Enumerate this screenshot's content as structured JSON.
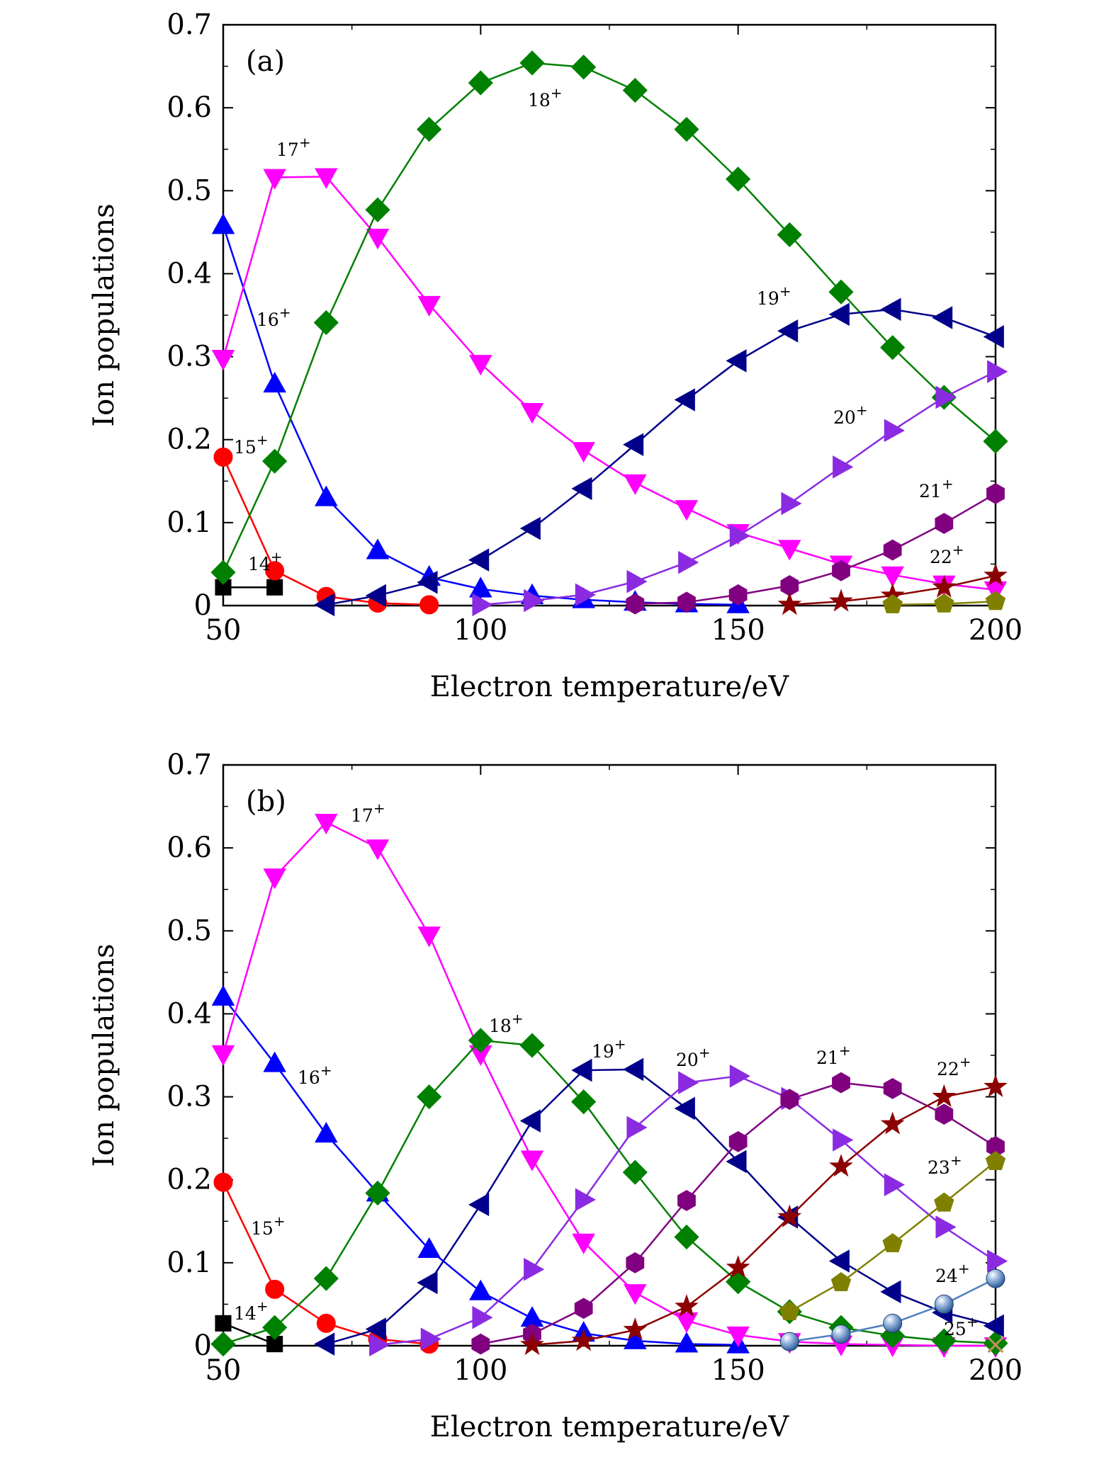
{
  "chart_data": [
    {
      "type": "line",
      "panel_label": "(a)",
      "xlabel": "Electron temperature/eV",
      "ylabel": "Ion populations",
      "xlim": [
        50,
        200
      ],
      "ylim": [
        0,
        0.7
      ],
      "xticks": [
        "50",
        "100",
        "150",
        "200"
      ],
      "yticks": [
        "0",
        "0.1",
        "0.2",
        "0.3",
        "0.4",
        "0.5",
        "0.6",
        "0.7"
      ],
      "series": [
        {
          "name": "14+",
          "color": "#000000",
          "marker": "square",
          "x": [
            50,
            60
          ],
          "y": [
            0.022,
            0.022
          ]
        },
        {
          "name": "15+",
          "color": "#ff0000",
          "marker": "circle",
          "x": [
            50,
            60,
            70,
            80,
            90
          ],
          "y": [
            0.179,
            0.042,
            0.011,
            0.003,
            0.001
          ]
        },
        {
          "name": "16+",
          "color": "#0000ff",
          "marker": "triangle-up",
          "x": [
            50,
            60,
            70,
            80,
            90,
            100,
            110,
            120,
            130,
            140,
            150
          ],
          "y": [
            0.458,
            0.267,
            0.13,
            0.066,
            0.034,
            0.02,
            0.012,
            0.007,
            0.004,
            0.002,
            0.001
          ]
        },
        {
          "name": "17+",
          "color": "#ff00ff",
          "marker": "triangle-down",
          "x": [
            50,
            60,
            70,
            80,
            90,
            100,
            110,
            120,
            130,
            140,
            150,
            160,
            170,
            180,
            190,
            200
          ],
          "y": [
            0.298,
            0.516,
            0.517,
            0.444,
            0.363,
            0.292,
            0.234,
            0.187,
            0.148,
            0.117,
            0.088,
            0.069,
            0.05,
            0.037,
            0.026,
            0.019
          ]
        },
        {
          "name": "18+",
          "color": "#008000",
          "marker": "diamond",
          "x": [
            50,
            60,
            70,
            80,
            90,
            100,
            110,
            120,
            130,
            140,
            150,
            160,
            170,
            180,
            190,
            200
          ],
          "y": [
            0.04,
            0.174,
            0.341,
            0.477,
            0.574,
            0.63,
            0.654,
            0.649,
            0.621,
            0.574,
            0.514,
            0.447,
            0.378,
            0.311,
            0.251,
            0.198
          ]
        },
        {
          "name": "19+",
          "color": "#00008b",
          "marker": "triangle-left",
          "x": [
            70,
            80,
            90,
            100,
            110,
            120,
            130,
            140,
            150,
            160,
            170,
            180,
            190,
            200
          ],
          "y": [
            0.001,
            0.012,
            0.028,
            0.055,
            0.093,
            0.141,
            0.194,
            0.248,
            0.295,
            0.331,
            0.351,
            0.357,
            0.347,
            0.324
          ]
        },
        {
          "name": "20+",
          "color": "#8a2be2",
          "marker": "triangle-right",
          "x": [
            100,
            110,
            120,
            130,
            140,
            150,
            160,
            170,
            180,
            190,
            200
          ],
          "y": [
            0.001,
            0.006,
            0.013,
            0.029,
            0.052,
            0.084,
            0.123,
            0.167,
            0.211,
            0.251,
            0.282
          ]
        },
        {
          "name": "21+",
          "color": "#800080",
          "marker": "hexagon",
          "x": [
            130,
            140,
            150,
            160,
            170,
            180,
            190,
            200
          ],
          "y": [
            0.002,
            0.004,
            0.013,
            0.024,
            0.042,
            0.067,
            0.099,
            0.135
          ]
        },
        {
          "name": "22+",
          "color": "#8b0000",
          "marker": "star",
          "x": [
            160,
            170,
            180,
            190,
            200
          ],
          "y": [
            0.001,
            0.005,
            0.012,
            0.022,
            0.036
          ]
        },
        {
          "name": "",
          "color": "#808000",
          "marker": "pentagon",
          "x": [
            180,
            190,
            200
          ],
          "y": [
            0.001,
            0.002,
            0.005
          ]
        }
      ]
    },
    {
      "type": "line",
      "panel_label": "(b)",
      "xlabel": "Electron temperature/eV",
      "ylabel": "Ion populations",
      "xlim": [
        50,
        200
      ],
      "ylim": [
        0,
        0.7
      ],
      "xticks": [
        "50",
        "100",
        "150",
        "200"
      ],
      "yticks": [
        "0",
        "0.1",
        "0.2",
        "0.3",
        "0.4",
        "0.5",
        "0.6",
        "0.7"
      ],
      "series": [
        {
          "name": "14+",
          "color": "#000000",
          "marker": "square",
          "x": [
            50,
            60
          ],
          "y": [
            0.027,
            0.002
          ]
        },
        {
          "name": "15+",
          "color": "#ff0000",
          "marker": "circle",
          "x": [
            50,
            60,
            70,
            80,
            90
          ],
          "y": [
            0.197,
            0.068,
            0.027,
            0.008,
            0.002
          ]
        },
        {
          "name": "16+",
          "color": "#0000ff",
          "marker": "triangle-up",
          "x": [
            50,
            60,
            70,
            80,
            90,
            100,
            110,
            120,
            130,
            140,
            150
          ],
          "y": [
            0.42,
            0.34,
            0.255,
            0.184,
            0.116,
            0.065,
            0.033,
            0.015,
            0.006,
            0.002,
            0.001
          ]
        },
        {
          "name": "17+",
          "color": "#ff00ff",
          "marker": "triangle-down",
          "x": [
            50,
            60,
            70,
            80,
            90,
            100,
            110,
            120,
            130,
            140,
            150,
            160,
            170,
            180,
            190,
            200
          ],
          "y": [
            0.352,
            0.565,
            0.631,
            0.6,
            0.495,
            0.352,
            0.225,
            0.125,
            0.064,
            0.03,
            0.013,
            0.005,
            0.002,
            0.001,
            0.0,
            0.0
          ]
        },
        {
          "name": "18+",
          "color": "#008000",
          "marker": "diamond",
          "x": [
            50,
            60,
            70,
            80,
            90,
            100,
            110,
            120,
            130,
            140,
            150,
            160,
            170,
            180,
            190,
            200
          ],
          "y": [
            0.002,
            0.022,
            0.081,
            0.184,
            0.3,
            0.368,
            0.362,
            0.294,
            0.209,
            0.131,
            0.077,
            0.041,
            0.022,
            0.012,
            0.006,
            0.003
          ]
        },
        {
          "name": "19+",
          "color": "#00008b",
          "marker": "triangle-left",
          "x": [
            70,
            80,
            90,
            100,
            110,
            120,
            130,
            140,
            150,
            160,
            170,
            180,
            190,
            200
          ],
          "y": [
            0.002,
            0.02,
            0.076,
            0.17,
            0.271,
            0.332,
            0.333,
            0.286,
            0.222,
            0.155,
            0.102,
            0.065,
            0.04,
            0.024
          ]
        },
        {
          "name": "20+",
          "color": "#8a2be2",
          "marker": "triangle-right",
          "x": [
            80,
            90,
            100,
            110,
            120,
            130,
            140,
            150,
            160,
            170,
            180,
            190,
            200
          ],
          "y": [
            0.001,
            0.008,
            0.034,
            0.092,
            0.176,
            0.263,
            0.317,
            0.325,
            0.298,
            0.248,
            0.194,
            0.143,
            0.102
          ]
        },
        {
          "name": "21+",
          "color": "#800080",
          "marker": "hexagon",
          "x": [
            100,
            110,
            120,
            130,
            140,
            150,
            160,
            170,
            180,
            190,
            200
          ],
          "y": [
            0.002,
            0.014,
            0.045,
            0.1,
            0.175,
            0.246,
            0.297,
            0.317,
            0.31,
            0.279,
            0.24
          ]
        },
        {
          "name": "22+",
          "color": "#8b0000",
          "marker": "star",
          "x": [
            110,
            120,
            130,
            140,
            150,
            160,
            170,
            180,
            190,
            200
          ],
          "y": [
            0.001,
            0.006,
            0.019,
            0.047,
            0.094,
            0.155,
            0.216,
            0.267,
            0.3,
            0.312
          ]
        },
        {
          "name": "23+",
          "color": "#808000",
          "marker": "pentagon",
          "x": [
            160,
            170,
            180,
            190,
            200
          ],
          "y": [
            0.041,
            0.076,
            0.123,
            0.172,
            0.222
          ]
        },
        {
          "name": "24+",
          "color": "#4f81bd",
          "marker": "sphere",
          "x": [
            160,
            170,
            180,
            190,
            200
          ],
          "y": [
            0.005,
            0.014,
            0.027,
            0.05,
            0.081
          ]
        },
        {
          "name": "25+",
          "color": "#c09060",
          "marker": "cross",
          "x": [
            200
          ],
          "y": [
            0.001
          ]
        }
      ]
    }
  ]
}
